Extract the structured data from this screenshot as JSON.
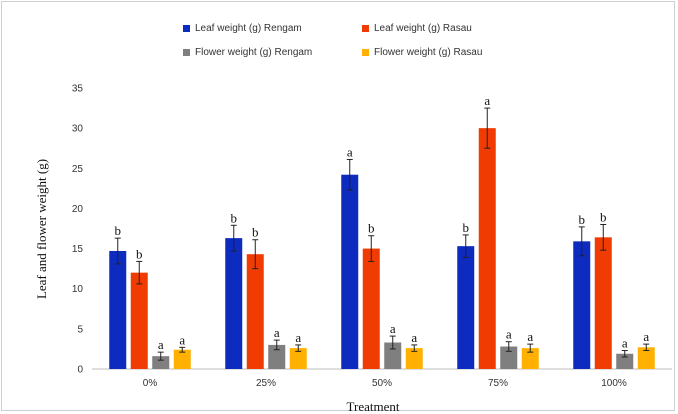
{
  "chart_data": {
    "type": "bar",
    "title": "",
    "xlabel": "Treatment",
    "ylabel": "Leaf and flower weight  (g)",
    "ylim": [
      0,
      35
    ],
    "yticks": [
      "0",
      "5",
      "10",
      "15",
      "20",
      "25",
      "30",
      "35"
    ],
    "categories": [
      "0%",
      "25%",
      "50%",
      "75%",
      "100%"
    ],
    "grid": false,
    "legend_position": "top",
    "series": [
      {
        "name": "Leaf weight (g) Rengam",
        "color": "#0d2bbf",
        "values": [
          14.7,
          16.3,
          24.2,
          15.3,
          15.9
        ],
        "errors": [
          1.6,
          1.6,
          1.9,
          1.4,
          1.8
        ],
        "significance": [
          "b",
          "b",
          "a",
          "b",
          "b"
        ]
      },
      {
        "name": "Leaf weight (g) Rasau",
        "color": "#f03c02",
        "values": [
          12.0,
          14.3,
          15.0,
          30.0,
          16.4
        ],
        "errors": [
          1.4,
          1.8,
          1.6,
          2.5,
          1.6
        ],
        "significance": [
          "b",
          "b",
          "b",
          "a",
          "b"
        ]
      },
      {
        "name": "Flower weight (g) Rengam",
        "color": "#7f7f7f",
        "values": [
          1.6,
          3.0,
          3.3,
          2.8,
          1.9
        ],
        "errors": [
          0.5,
          0.6,
          0.8,
          0.6,
          0.4
        ],
        "significance": [
          "a",
          "a",
          "a",
          "a",
          "a"
        ]
      },
      {
        "name": "Flower weight (g) Rasau",
        "color": "#ffb000",
        "values": [
          2.4,
          2.6,
          2.6,
          2.6,
          2.7
        ],
        "errors": [
          0.3,
          0.4,
          0.4,
          0.5,
          0.4
        ],
        "significance": [
          "a",
          "a",
          "a",
          "a",
          "a"
        ]
      }
    ]
  }
}
